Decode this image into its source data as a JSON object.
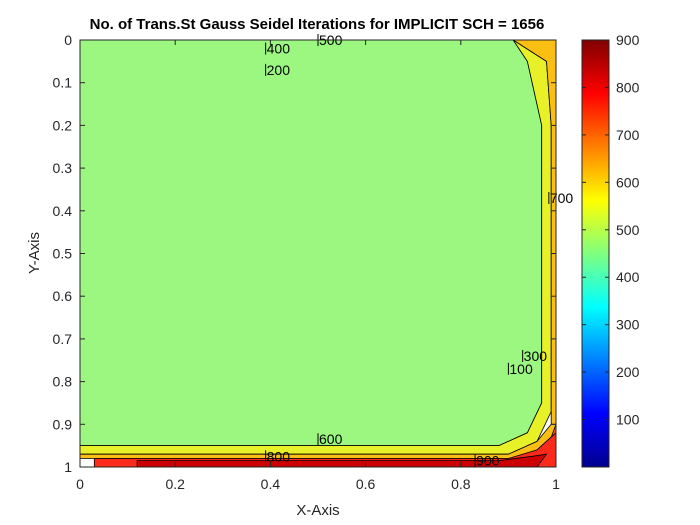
{
  "chart_data": {
    "type": "heatmap",
    "subtype": "filled-contour",
    "title": "No. of Trans.St Gauss Seidel Iterations for IMPLICIT SCH = 1656",
    "xlabel": "X-Axis",
    "ylabel": "Y-Axis",
    "xlim": [
      0,
      1
    ],
    "ylim": [
      0,
      1
    ],
    "y_reversed": true,
    "x_ticks": [
      "0",
      "0.2",
      "0.4",
      "0.6",
      "0.8",
      "1"
    ],
    "y_ticks": [
      "0",
      "0.1",
      "0.2",
      "0.3",
      "0.4",
      "0.5",
      "0.6",
      "0.7",
      "0.8",
      "0.9",
      "1"
    ],
    "colorbar": {
      "colormap": "jet",
      "range": [
        0,
        900
      ],
      "ticks": [
        "100",
        "200",
        "300",
        "400",
        "500",
        "600",
        "700",
        "800",
        "900"
      ]
    },
    "levels": [
      {
        "value": 0,
        "color": "#0b1087",
        "poly": [
          [
            0.11,
            0.18
          ],
          [
            0.93,
            0.18
          ],
          [
            0.93,
            0.78
          ],
          [
            0.11,
            0.78
          ]
        ]
      },
      {
        "value": 100,
        "color": "#0000d9",
        "poly": [
          [
            0.1,
            0.1
          ],
          [
            0.9,
            0.1
          ],
          [
            0.91,
            0.17
          ],
          [
            0.91,
            0.79
          ],
          [
            0.88,
            0.82
          ],
          [
            0.1,
            0.82
          ],
          [
            0.07,
            0.79
          ],
          [
            0.07,
            0.17
          ]
        ]
      },
      {
        "value": 200,
        "color": "#0a6ff0",
        "poly": [
          [
            0.09,
            0.07
          ],
          [
            0.87,
            0.07
          ],
          [
            0.91,
            0.14
          ],
          [
            0.93,
            0.36
          ],
          [
            0.93,
            0.74
          ],
          [
            0.91,
            0.84
          ],
          [
            0.84,
            0.87
          ],
          [
            0.09,
            0.87
          ],
          [
            0.05,
            0.79
          ],
          [
            0.05,
            0.16
          ]
        ]
      },
      {
        "value": 300,
        "color": "#15c6f2",
        "poly": [
          [
            0.07,
            0.04
          ],
          [
            0.88,
            0.04
          ],
          [
            0.92,
            0.1
          ],
          [
            0.94,
            0.3
          ],
          [
            0.94,
            0.8
          ],
          [
            0.92,
            0.88
          ],
          [
            0.84,
            0.91
          ],
          [
            0.07,
            0.91
          ],
          [
            0,
            0.89
          ],
          [
            0,
            0.11
          ]
        ]
      },
      {
        "value": 400,
        "color": "#47f0ca",
        "poly": [
          [
            0.05,
            0.02
          ],
          [
            0.9,
            0.02
          ],
          [
            0.93,
            0.07
          ],
          [
            0.95,
            0.25
          ],
          [
            0.95,
            0.83
          ],
          [
            0.93,
            0.9
          ],
          [
            0.86,
            0.93
          ],
          [
            0.05,
            0.93
          ],
          [
            0,
            0.93
          ],
          [
            0,
            0.03
          ]
        ]
      },
      {
        "value": 500,
        "color": "#9bf780",
        "poly": [
          [
            0,
            0
          ],
          [
            0.91,
            0
          ],
          [
            0.94,
            0.05
          ],
          [
            0.97,
            0.2
          ],
          [
            0.97,
            0.85
          ],
          [
            0.94,
            0.92
          ],
          [
            0.88,
            0.95
          ],
          [
            0,
            0.95
          ]
        ]
      },
      {
        "value": 600,
        "color": "#e8f028",
        "poly": [
          [
            0.91,
            0
          ],
          [
            0.98,
            0.05
          ],
          [
            0.99,
            0.2
          ],
          [
            0.99,
            0.87
          ],
          [
            0.96,
            0.94
          ],
          [
            0.9,
            0.97
          ],
          [
            0.02,
            0.97
          ],
          [
            0,
            0.97
          ],
          [
            0,
            0.95
          ],
          [
            0.88,
            0.95
          ],
          [
            0.94,
            0.92
          ],
          [
            0.97,
            0.85
          ],
          [
            0.97,
            0.2
          ],
          [
            0.94,
            0.05
          ]
        ]
      },
      {
        "value": 700,
        "color": "#fbbf13",
        "poly": [
          [
            0.91,
            0
          ],
          [
            1,
            0
          ],
          [
            1,
            0.9
          ],
          [
            0.99,
            0.92
          ],
          [
            0.99,
            0.2
          ],
          [
            0.98,
            0.05
          ]
        ]
      },
      {
        "value": 700,
        "color": "#fbbf13",
        "poly": [
          [
            0,
            0.97
          ],
          [
            0.9,
            0.97
          ],
          [
            0.96,
            0.94
          ],
          [
            0.99,
            0.9
          ],
          [
            1,
            0.9
          ],
          [
            1,
            0.98
          ],
          [
            0,
            0.98
          ]
        ]
      },
      {
        "value": 800,
        "color": "#f4521c",
        "poly": [
          [
            1,
            0.9
          ],
          [
            1,
            0.98
          ],
          [
            0.96,
            0.96
          ],
          [
            0.99,
            0.93
          ]
        ]
      },
      {
        "value": 800,
        "color": "#fb2a1a",
        "poly": [
          [
            0.03,
            0.98
          ],
          [
            0.9,
            0.98
          ],
          [
            0.96,
            0.96
          ],
          [
            1,
            0.92
          ],
          [
            1,
            1
          ],
          [
            0.03,
            1
          ]
        ]
      },
      {
        "value": 900,
        "color": "#cc0000",
        "poly": [
          [
            0.12,
            0.985
          ],
          [
            0.88,
            0.985
          ],
          [
            0.95,
            0.975
          ],
          [
            0.98,
            0.97
          ],
          [
            0.96,
            1
          ],
          [
            0.12,
            1
          ]
        ]
      }
    ],
    "contour_labels": [
      {
        "text": "500",
        "x": 0.5,
        "y": 0.0
      },
      {
        "text": "400",
        "x": 0.39,
        "y": 0.02
      },
      {
        "text": "200",
        "x": 0.39,
        "y": 0.07
      },
      {
        "text": "700",
        "x": 0.985,
        "y": 0.37
      },
      {
        "text": "300",
        "x": 0.93,
        "y": 0.74
      },
      {
        "text": "100",
        "x": 0.9,
        "y": 0.77
      },
      {
        "text": "600",
        "x": 0.5,
        "y": 0.935
      },
      {
        "text": "800",
        "x": 0.39,
        "y": 0.975
      },
      {
        "text": "900",
        "x": 0.83,
        "y": 0.985
      }
    ]
  }
}
